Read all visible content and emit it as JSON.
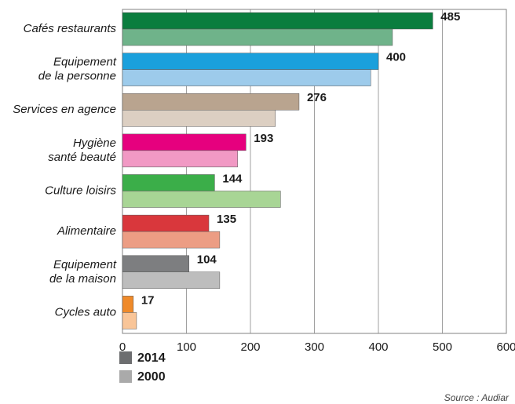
{
  "chart_data": {
    "type": "hbar",
    "categories": [
      "Cafés restaurants",
      "Equipement\nde la personne",
      "Services en agence",
      "Hygiène\nsanté beauté",
      "Culture loisirs",
      "Alimentaire",
      "Equipement\nde la maison",
      "Cycles auto"
    ],
    "series": [
      {
        "name": "2014",
        "color": "#6d6e70",
        "colors": [
          "#0a7d3e",
          "#1aa0dc",
          "#b9a48f",
          "#e6007e",
          "#3bae49",
          "#d9373c",
          "#7d7e80",
          "#ef8a2a"
        ],
        "values": [
          485,
          400,
          276,
          193,
          144,
          135,
          104,
          17
        ]
      },
      {
        "name": "2000",
        "color": "#aaaaaa",
        "colors": [
          "#6fb38a",
          "#9dcbeb",
          "#dccfc2",
          "#f199c4",
          "#a8d595",
          "#ec9d84",
          "#bdbdbd",
          "#f9c598"
        ],
        "values": [
          422,
          388,
          239,
          180,
          247,
          152,
          152,
          22
        ]
      }
    ],
    "xlim": [
      0,
      600
    ],
    "xticks": [
      0,
      100,
      200,
      300,
      400,
      500,
      600
    ],
    "grid": true,
    "source": "Source : Audiar"
  }
}
